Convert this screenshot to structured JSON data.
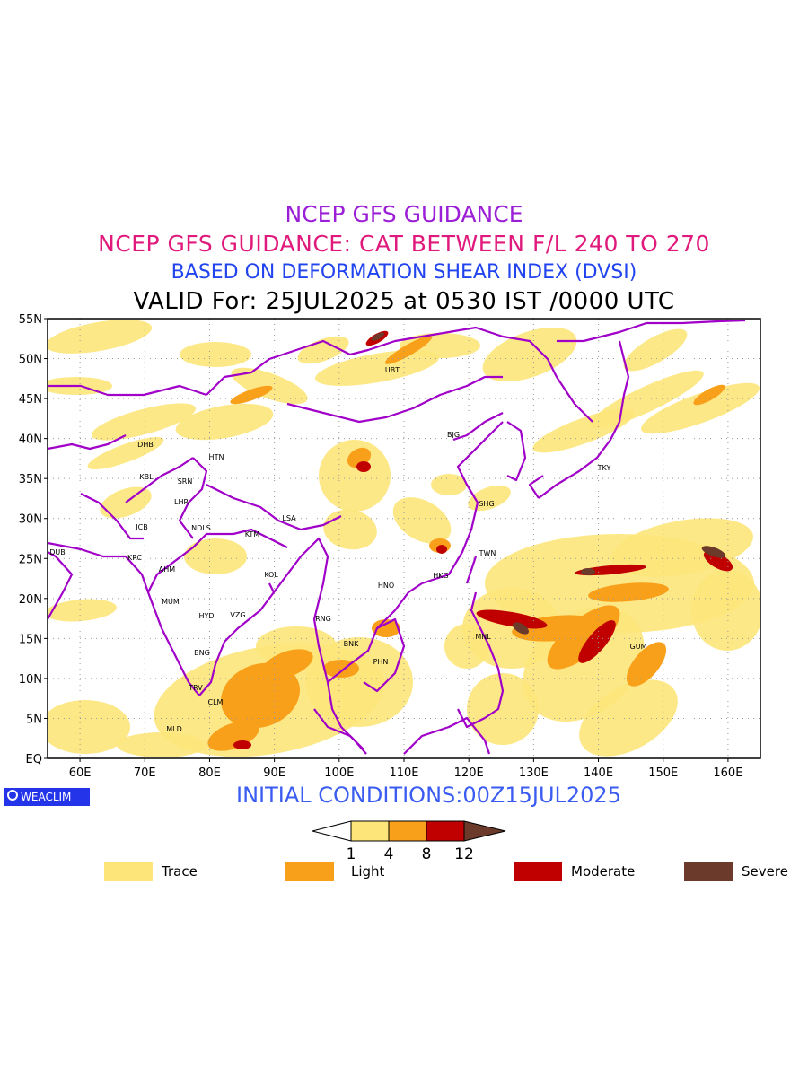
{
  "titles": {
    "line1": "NCEP GFS GUIDANCE",
    "line2": "NCEP GFS GUIDANCE: CAT BETWEEN F/L 240 TO 270",
    "line3": "BASED ON DEFORMATION SHEAR INDEX (DVSI)",
    "line4": "VALID For: 25JUL2025 at 0530 IST /0000 UTC"
  },
  "colors": {
    "title1": "#9b1fd6",
    "title2": "#e01a7c",
    "title3": "#2244ee",
    "border": "#a000c8",
    "trace": "#fde57a",
    "light": "#f9a01b",
    "moderate": "#c00000",
    "severe": "#6b3a2a"
  },
  "axes": {
    "lat_labels": [
      "55N",
      "50N",
      "45N",
      "40N",
      "35N",
      "30N",
      "25N",
      "20N",
      "15N",
      "10N",
      "5N",
      "EQ"
    ],
    "lon_labels": [
      "60E",
      "70E",
      "80E",
      "90E",
      "100E",
      "110E",
      "120E",
      "130E",
      "140E",
      "150E",
      "160E"
    ]
  },
  "cities": [
    {
      "name": "UBT"
    },
    {
      "name": "BJG"
    },
    {
      "name": "DHB"
    },
    {
      "name": "HTN"
    },
    {
      "name": "KBL"
    },
    {
      "name": "SRN"
    },
    {
      "name": "LHR"
    },
    {
      "name": "TKY"
    },
    {
      "name": "SHG"
    },
    {
      "name": "JCB"
    },
    {
      "name": "NDLS"
    },
    {
      "name": "KTM"
    },
    {
      "name": "LSA"
    },
    {
      "name": "DUB"
    },
    {
      "name": "KRC"
    },
    {
      "name": "AHM"
    },
    {
      "name": "TWN"
    },
    {
      "name": "KOL"
    },
    {
      "name": "HNO"
    },
    {
      "name": "HKG"
    },
    {
      "name": "MUM"
    },
    {
      "name": "HYD"
    },
    {
      "name": "VZG"
    },
    {
      "name": "RNG"
    },
    {
      "name": "BNK"
    },
    {
      "name": "MNL"
    },
    {
      "name": "GUM"
    },
    {
      "name": "BNG"
    },
    {
      "name": "PHN"
    },
    {
      "name": "TRV"
    },
    {
      "name": "CLM"
    },
    {
      "name": "MLD"
    }
  ],
  "logo": "WEACLIM",
  "initial_conditions": "INITIAL CONDITIONS:00Z15JUL2025",
  "colorbar": {
    "ticks": [
      "1",
      "4",
      "8",
      "12"
    ]
  },
  "legend": [
    {
      "label": "Trace"
    },
    {
      "label": "Light"
    },
    {
      "label": "Moderate"
    },
    {
      "label": "Severe"
    }
  ]
}
